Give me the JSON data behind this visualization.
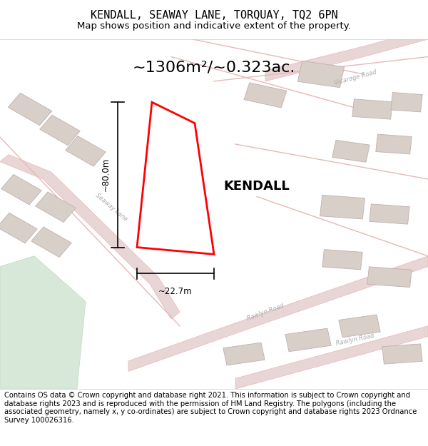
{
  "title": "KENDALL, SEAWAY LANE, TORQUAY, TQ2 6PN",
  "subtitle": "Map shows position and indicative extent of the property.",
  "area_text": "~1306m²/~0.323ac.",
  "property_name": "KENDALL",
  "dim_height": "~80.0m",
  "dim_width": "~22.7m",
  "footer": "Contains OS data © Crown copyright and database right 2021. This information is subject to Crown copyright and database rights 2023 and is reproduced with the permission of HM Land Registry. The polygons (including the associated geometry, namely x, y co-ordinates) are subject to Crown copyright and database rights 2023 Ordnance Survey 100026316.",
  "background_color": "#f5f0eb",
  "map_bg_color": "#f0ebe5",
  "property_fill": "#ffffff",
  "property_outline": "#ff0000",
  "road_color": "#e8b8b8",
  "building_color": "#d8cfc8",
  "header_bg": "#ffffff",
  "footer_bg": "#ffffff",
  "figsize": [
    6.0,
    6.25
  ],
  "dpi": 100
}
